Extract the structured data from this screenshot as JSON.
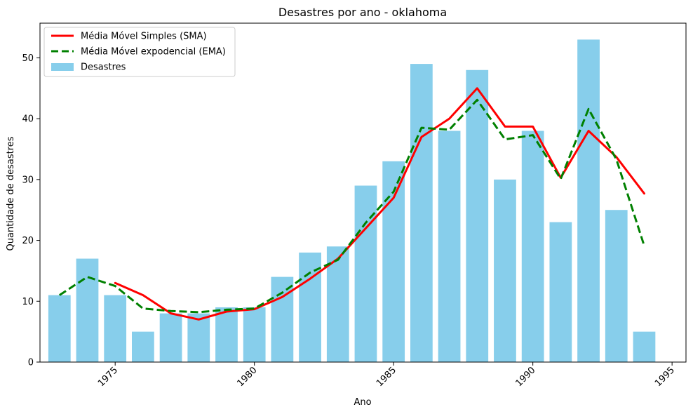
{
  "chart_data": {
    "type": "bar",
    "title": "Desastres por ano - oklahoma",
    "xlabel": "Ano",
    "ylabel": "Quantidade de desastres",
    "xlim": [
      1972.3,
      1995.5
    ],
    "ylim": [
      0,
      55.7
    ],
    "x_ticks": [
      1975,
      1980,
      1985,
      1990,
      1995
    ],
    "y_ticks": [
      0,
      10,
      20,
      30,
      40,
      50
    ],
    "grid": false,
    "legend_position": "upper left",
    "x": [
      1973,
      1974,
      1975,
      1976,
      1977,
      1978,
      1979,
      1980,
      1981,
      1982,
      1983,
      1984,
      1985,
      1986,
      1987,
      1988,
      1989,
      1990,
      1991,
      1992,
      1993,
      1994
    ],
    "series": [
      {
        "name": "Desastres",
        "kind": "bar",
        "color": "#87ceeb",
        "values": [
          11,
          17,
          11,
          5,
          8,
          8,
          9,
          9,
          14,
          18,
          19,
          29,
          33,
          49,
          38,
          48,
          30,
          38,
          23,
          53,
          25,
          5
        ]
      },
      {
        "name": "Média Móvel Simples (SMA)",
        "kind": "line",
        "color": "#ff0000",
        "dash": "solid",
        "values": [
          null,
          null,
          13,
          11,
          8,
          7,
          8.3,
          8.7,
          10.7,
          13.7,
          17,
          22,
          27,
          37,
          40,
          45,
          38.7,
          38.7,
          30.3,
          38,
          33.7,
          27.7
        ]
      },
      {
        "name": "Média Móvel expodencial (EMA)",
        "kind": "line",
        "color": "#008000",
        "dash": "dashed",
        "values": [
          11,
          14,
          12.5,
          8.8,
          8.4,
          8.2,
          8.6,
          8.8,
          11.4,
          14.7,
          16.8,
          22.9,
          28,
          38.5,
          38.2,
          43.1,
          36.6,
          37.3,
          30.1,
          41.6,
          33.3,
          19.1
        ]
      }
    ]
  }
}
